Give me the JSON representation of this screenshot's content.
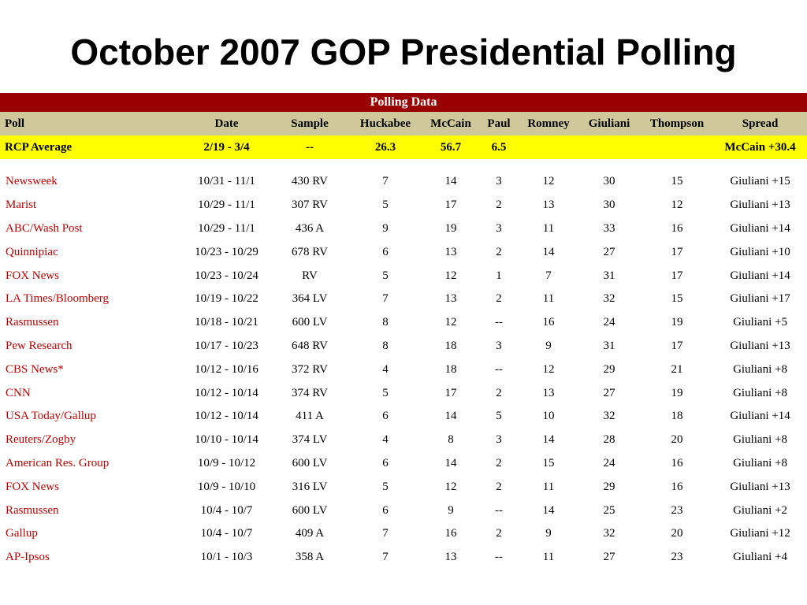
{
  "title": "October 2007 GOP Presidential Polling",
  "table": {
    "band_label": "Polling Data",
    "headers": [
      "Poll",
      "Date",
      "Sample",
      "Huckabee",
      "McCain",
      "Paul",
      "Romney",
      "Giuliani",
      "Thompson",
      "Spread"
    ],
    "average": {
      "poll": "RCP Average",
      "date": "2/19 - 3/4",
      "sample": "--",
      "huckabee": "26.3",
      "mccain": "56.7",
      "paul": "6.5",
      "romney": "",
      "giuliani": "",
      "thompson": "",
      "spread": "McCain +30.4"
    },
    "rows": [
      {
        "poll": "Newsweek",
        "date": "10/31 - 11/1",
        "sample": "430 RV",
        "huckabee": "7",
        "mccain": "14",
        "paul": "3",
        "romney": "12",
        "giuliani": "30",
        "thompson": "15",
        "spread": "Giuliani +15"
      },
      {
        "poll": "Marist",
        "date": "10/29 - 11/1",
        "sample": "307 RV",
        "huckabee": "5",
        "mccain": "17",
        "paul": "2",
        "romney": "13",
        "giuliani": "30",
        "thompson": "12",
        "spread": "Giuliani +13"
      },
      {
        "poll": "ABC/Wash Post",
        "date": "10/29 - 11/1",
        "sample": "436 A",
        "huckabee": "9",
        "mccain": "19",
        "paul": "3",
        "romney": "11",
        "giuliani": "33",
        "thompson": "16",
        "spread": "Giuliani +14"
      },
      {
        "poll": "Quinnipiac",
        "date": "10/23 - 10/29",
        "sample": "678 RV",
        "huckabee": "6",
        "mccain": "13",
        "paul": "2",
        "romney": "14",
        "giuliani": "27",
        "thompson": "17",
        "spread": "Giuliani +10"
      },
      {
        "poll": "FOX News",
        "date": "10/23 - 10/24",
        "sample": "RV",
        "huckabee": "5",
        "mccain": "12",
        "paul": "1",
        "romney": "7",
        "giuliani": "31",
        "thompson": "17",
        "spread": "Giuliani +14"
      },
      {
        "poll": "LA Times/Bloomberg",
        "date": "10/19 - 10/22",
        "sample": "364 LV",
        "huckabee": "7",
        "mccain": "13",
        "paul": "2",
        "romney": "11",
        "giuliani": "32",
        "thompson": "15",
        "spread": "Giuliani +17"
      },
      {
        "poll": "Rasmussen",
        "date": "10/18 - 10/21",
        "sample": "600 LV",
        "huckabee": "8",
        "mccain": "12",
        "paul": "--",
        "romney": "16",
        "giuliani": "24",
        "thompson": "19",
        "spread": "Giuliani +5"
      },
      {
        "poll": "Pew Research",
        "date": "10/17 - 10/23",
        "sample": "648 RV",
        "huckabee": "8",
        "mccain": "18",
        "paul": "3",
        "romney": "9",
        "giuliani": "31",
        "thompson": "17",
        "spread": "Giuliani +13"
      },
      {
        "poll": "CBS News*",
        "date": "10/12 - 10/16",
        "sample": "372 RV",
        "huckabee": "4",
        "mccain": "18",
        "paul": "--",
        "romney": "12",
        "giuliani": "29",
        "thompson": "21",
        "spread": "Giuliani +8"
      },
      {
        "poll": "CNN",
        "date": "10/12 - 10/14",
        "sample": "374 RV",
        "huckabee": "5",
        "mccain": "17",
        "paul": "2",
        "romney": "13",
        "giuliani": "27",
        "thompson": "19",
        "spread": "Giuliani +8"
      },
      {
        "poll": "USA Today/Gallup",
        "date": "10/12 - 10/14",
        "sample": "411 A",
        "huckabee": "6",
        "mccain": "14",
        "paul": "5",
        "romney": "10",
        "giuliani": "32",
        "thompson": "18",
        "spread": "Giuliani +14"
      },
      {
        "poll": "Reuters/Zogby",
        "date": "10/10 - 10/14",
        "sample": "374 LV",
        "huckabee": "4",
        "mccain": "8",
        "paul": "3",
        "romney": "14",
        "giuliani": "28",
        "thompson": "20",
        "spread": "Giuliani +8"
      },
      {
        "poll": "American Res. Group",
        "date": "10/9 - 10/12",
        "sample": "600 LV",
        "huckabee": "6",
        "mccain": "14",
        "paul": "2",
        "romney": "15",
        "giuliani": "24",
        "thompson": "16",
        "spread": "Giuliani +8"
      },
      {
        "poll": "FOX News",
        "date": "10/9 - 10/10",
        "sample": "316 LV",
        "huckabee": "5",
        "mccain": "12",
        "paul": "2",
        "romney": "11",
        "giuliani": "29",
        "thompson": "16",
        "spread": "Giuliani +13"
      },
      {
        "poll": "Rasmussen",
        "date": "10/4 - 10/7",
        "sample": "600 LV",
        "huckabee": "6",
        "mccain": "9",
        "paul": "--",
        "romney": "14",
        "giuliani": "25",
        "thompson": "23",
        "spread": "Giuliani +2"
      },
      {
        "poll": "Gallup",
        "date": "10/4 - 10/7",
        "sample": "409 A",
        "huckabee": "7",
        "mccain": "16",
        "paul": "2",
        "romney": "9",
        "giuliani": "32",
        "thompson": "20",
        "spread": "Giuliani +12"
      },
      {
        "poll": "AP-Ipsos",
        "date": "10/1 - 10/3",
        "sample": "358 A",
        "huckabee": "7",
        "mccain": "13",
        "paul": "--",
        "romney": "11",
        "giuliani": "27",
        "thompson": "23",
        "spread": "Giuliani +4"
      }
    ]
  },
  "colors": {
    "band": "#990000",
    "header": "#cfc89a",
    "average_highlight": "#ffff00",
    "poll_link": "#c00000"
  }
}
